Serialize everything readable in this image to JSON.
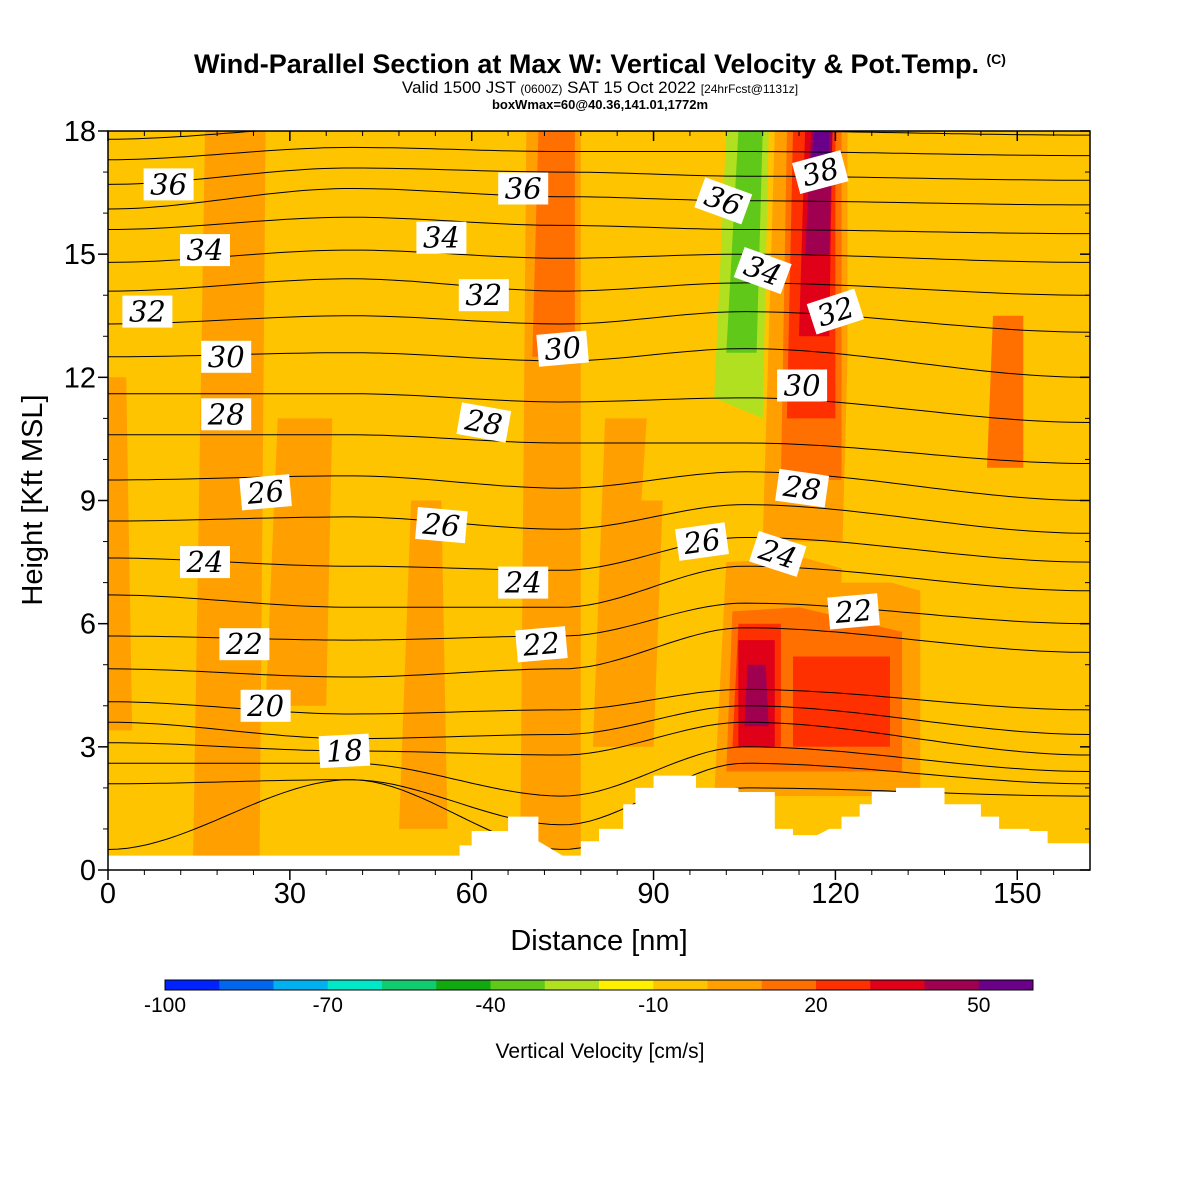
{
  "title": "Wind-Parallel Section at Max W: Vertical Velocity & Pot.Temp.",
  "copyright": "(C)",
  "subtitle": {
    "valid": "Valid 1500 JST",
    "utc": "(0600Z)",
    "date": "SAT 15 Oct 2022",
    "fcst": "[24hrFcst@1131z]"
  },
  "box_info": "boxWmax=60@40.36,141.01,1772m",
  "chart_data": {
    "type": "heatmap",
    "xlabel": "Distance [nm]",
    "ylabel": "Height [Kft MSL]",
    "xlim": [
      0,
      162
    ],
    "ylim": [
      0,
      18
    ],
    "x_ticks": [
      0,
      30,
      60,
      90,
      120,
      150
    ],
    "y_ticks": [
      0,
      3,
      6,
      9,
      12,
      15,
      18
    ],
    "background_color": "#ffc400",
    "colorbar": {
      "label": "Vertical Velocity [cm/s]",
      "min": -100,
      "max": 60,
      "step": 10,
      "tick_labels": [
        -100,
        -70,
        -40,
        -10,
        20,
        50
      ],
      "colors": [
        "#0022ff",
        "#0066ee",
        "#00b0f0",
        "#00e8c8",
        "#10cc70",
        "#10aa10",
        "#60c818",
        "#b0e020",
        "#fff000",
        "#ffc400",
        "#ffa000",
        "#ff7000",
        "#ff3000",
        "#e00018",
        "#a00050",
        "#6a008a"
      ]
    },
    "terrain_kft": [
      [
        0,
        0.35
      ],
      [
        58,
        0.35
      ],
      [
        58,
        0.6
      ],
      [
        60,
        0.6
      ],
      [
        60,
        0.95
      ],
      [
        66,
        0.95
      ],
      [
        66,
        1.3
      ],
      [
        71,
        1.3
      ],
      [
        71,
        0.7
      ],
      [
        75,
        0.35
      ],
      [
        78,
        0.35
      ],
      [
        78,
        0.7
      ],
      [
        81,
        0.7
      ],
      [
        81,
        1.0
      ],
      [
        85,
        1.0
      ],
      [
        85,
        1.6
      ],
      [
        87,
        1.6
      ],
      [
        87,
        2.0
      ],
      [
        90,
        2.0
      ],
      [
        90,
        2.3
      ],
      [
        97,
        2.3
      ],
      [
        97,
        2.0
      ],
      [
        100,
        2.0
      ],
      [
        104,
        2.0
      ],
      [
        104,
        1.9
      ],
      [
        110,
        1.9
      ],
      [
        110,
        1.0
      ],
      [
        113,
        1.0
      ],
      [
        113,
        0.85
      ],
      [
        117,
        0.85
      ],
      [
        119,
        1.0
      ],
      [
        121,
        1.0
      ],
      [
        121,
        1.3
      ],
      [
        124,
        1.3
      ],
      [
        124,
        1.6
      ],
      [
        126,
        1.6
      ],
      [
        126,
        1.9
      ],
      [
        130,
        1.9
      ],
      [
        130,
        2.0
      ],
      [
        138,
        2.0
      ],
      [
        138,
        1.6
      ],
      [
        144,
        1.6
      ],
      [
        144,
        1.3
      ],
      [
        147,
        1.3
      ],
      [
        147,
        1.0
      ],
      [
        152,
        1.0
      ],
      [
        152,
        0.95
      ],
      [
        155,
        0.95
      ],
      [
        155,
        0.65
      ],
      [
        162,
        0.65
      ]
    ],
    "w_regions": [
      {
        "w": 5,
        "points": [
          [
            14,
            0
          ],
          [
            25,
            0
          ],
          [
            26,
            18
          ],
          [
            16,
            18
          ]
        ]
      },
      {
        "w": 5,
        "points": [
          [
            0,
            3.4
          ],
          [
            4,
            3.4
          ],
          [
            3,
            12
          ],
          [
            0,
            12
          ]
        ]
      },
      {
        "w": 5,
        "points": [
          [
            26,
            4
          ],
          [
            36,
            4
          ],
          [
            37,
            11
          ],
          [
            28,
            11
          ]
        ]
      },
      {
        "w": 5,
        "points": [
          [
            48,
            1
          ],
          [
            56,
            1
          ],
          [
            55,
            9
          ],
          [
            50,
            9
          ]
        ]
      },
      {
        "w": -5,
        "points": [
          [
            38,
            7
          ],
          [
            46,
            7
          ],
          [
            47,
            18
          ],
          [
            40,
            18
          ]
        ]
      },
      {
        "w": -5,
        "points": [
          [
            60,
            6
          ],
          [
            66,
            6
          ],
          [
            67,
            18
          ],
          [
            62,
            18
          ]
        ]
      },
      {
        "w": 5,
        "points": [
          [
            68,
            0.5
          ],
          [
            78,
            0.5
          ],
          [
            78,
            18
          ],
          [
            69,
            18
          ]
        ]
      },
      {
        "w": 15,
        "points": [
          [
            70,
            12.5
          ],
          [
            77,
            12.5
          ],
          [
            77,
            18
          ],
          [
            71,
            18
          ]
        ]
      },
      {
        "w": 5,
        "points": [
          [
            80,
            3
          ],
          [
            90,
            3
          ],
          [
            92,
            11
          ],
          [
            82,
            11
          ]
        ]
      },
      {
        "w": -5,
        "points": [
          [
            88,
            9
          ],
          [
            98,
            9
          ],
          [
            102,
            18
          ],
          [
            92,
            18
          ]
        ]
      },
      {
        "w": -10,
        "points": [
          [
            96,
            12
          ],
          [
            104,
            12
          ],
          [
            106,
            18
          ],
          [
            98,
            18
          ]
        ]
      },
      {
        "w": -25,
        "points": [
          [
            100,
            11.5
          ],
          [
            108,
            11
          ],
          [
            109,
            18
          ],
          [
            102,
            18
          ]
        ]
      },
      {
        "w": -35,
        "points": [
          [
            102,
            12.6
          ],
          [
            107,
            12.6
          ],
          [
            108,
            18
          ],
          [
            104,
            18
          ]
        ]
      },
      {
        "w": 5,
        "points": [
          [
            100,
            1.8
          ],
          [
            134,
            1.8
          ],
          [
            134,
            6.8
          ],
          [
            115,
            7.6
          ],
          [
            102,
            7.5
          ]
        ]
      },
      {
        "w": 15,
        "points": [
          [
            102,
            2.4
          ],
          [
            131,
            2.4
          ],
          [
            131,
            5.8
          ],
          [
            114,
            6.4
          ],
          [
            103,
            6.3
          ]
        ]
      },
      {
        "w": 25,
        "points": [
          [
            103,
            3
          ],
          [
            111,
            3
          ],
          [
            111,
            6.0
          ],
          [
            104,
            6.0
          ]
        ]
      },
      {
        "w": 25,
        "points": [
          [
            113,
            3
          ],
          [
            129,
            3
          ],
          [
            129,
            5.2
          ],
          [
            113,
            5.2
          ]
        ]
      },
      {
        "w": 35,
        "points": [
          [
            104,
            3
          ],
          [
            110,
            3
          ],
          [
            110,
            5.6
          ],
          [
            104,
            5.6
          ]
        ]
      },
      {
        "w": 45,
        "points": [
          [
            105,
            3.5
          ],
          [
            109,
            3.5
          ],
          [
            108.5,
            5.0
          ],
          [
            105.5,
            5.0
          ]
        ]
      },
      {
        "w": 5,
        "points": [
          [
            108,
            8
          ],
          [
            122,
            8
          ],
          [
            122,
            18
          ],
          [
            110,
            18
          ]
        ]
      },
      {
        "w": 15,
        "points": [
          [
            111,
            9.5
          ],
          [
            121,
            9.5
          ],
          [
            121,
            18
          ],
          [
            112,
            18
          ]
        ]
      },
      {
        "w": 25,
        "points": [
          [
            112,
            11
          ],
          [
            120,
            11
          ],
          [
            120,
            18
          ],
          [
            113,
            18
          ]
        ]
      },
      {
        "w": 35,
        "points": [
          [
            114,
            13
          ],
          [
            119,
            13
          ],
          [
            119.5,
            18
          ],
          [
            115,
            18
          ]
        ]
      },
      {
        "w": 45,
        "points": [
          [
            115,
            15
          ],
          [
            119,
            15
          ],
          [
            119.5,
            18
          ],
          [
            116,
            18
          ]
        ]
      },
      {
        "w": 55,
        "points": [
          [
            116,
            17.2
          ],
          [
            119,
            17.2
          ],
          [
            119,
            18
          ],
          [
            116.5,
            18
          ]
        ]
      },
      {
        "w": -5,
        "points": [
          [
            121,
            7
          ],
          [
            132,
            7
          ],
          [
            133,
            18
          ],
          [
            123,
            18
          ]
        ]
      },
      {
        "w": -5,
        "points": [
          [
            148,
            4
          ],
          [
            158,
            4
          ],
          [
            160,
            16
          ],
          [
            150,
            16
          ]
        ]
      },
      {
        "w": 15,
        "points": [
          [
            145,
            9.8
          ],
          [
            151,
            9.8
          ],
          [
            151,
            13.5
          ],
          [
            146,
            13.5
          ]
        ]
      }
    ],
    "theta_levels": [
      {
        "value": 16,
        "h": [
          0.5,
          2.2,
          0.5,
          2.0,
          1.8
        ]
      },
      {
        "value": 17,
        "h": [
          2.1,
          2.2,
          1.1,
          2.6,
          2.1
        ]
      },
      {
        "value": 18,
        "h": [
          2.6,
          2.6,
          1.8,
          3.0,
          2.4
        ]
      },
      {
        "value": 19,
        "h": [
          3.1,
          2.9,
          2.8,
          3.6,
          2.8
        ]
      },
      {
        "value": 20,
        "h": [
          3.6,
          3.2,
          3.3,
          4.0,
          3.3
        ]
      },
      {
        "value": 21,
        "h": [
          4.1,
          3.8,
          3.9,
          4.4,
          3.9
        ]
      },
      {
        "value": 22,
        "h": [
          4.9,
          4.7,
          4.9,
          5.9,
          5.3
        ]
      },
      {
        "value": 23,
        "h": [
          5.7,
          5.6,
          5.7,
          6.5,
          6.0
        ]
      },
      {
        "value": 24,
        "h": [
          6.7,
          6.4,
          6.4,
          7.4,
          6.8
        ]
      },
      {
        "value": 25,
        "h": [
          7.6,
          7.4,
          7.3,
          8.1,
          7.5
        ]
      },
      {
        "value": 26,
        "h": [
          8.5,
          8.6,
          8.3,
          8.9,
          8.2
        ]
      },
      {
        "value": 27,
        "h": [
          9.5,
          9.6,
          9.3,
          9.7,
          9.0
        ]
      },
      {
        "value": 28,
        "h": [
          10.6,
          10.6,
          10.4,
          10.4,
          9.9
        ]
      },
      {
        "value": 29,
        "h": [
          11.6,
          11.6,
          11.4,
          11.5,
          10.9
        ]
      },
      {
        "value": 30,
        "h": [
          12.5,
          12.6,
          12.4,
          12.7,
          12.0
        ]
      },
      {
        "value": 31,
        "h": [
          13.3,
          13.5,
          13.3,
          13.6,
          13.1
        ]
      },
      {
        "value": 32,
        "h": [
          14.1,
          14.4,
          14.1,
          14.3,
          14.0
        ]
      },
      {
        "value": 33,
        "h": [
          14.8,
          15.1,
          14.9,
          15.0,
          14.8
        ]
      },
      {
        "value": 34,
        "h": [
          15.6,
          15.9,
          15.7,
          15.6,
          15.5
        ]
      },
      {
        "value": 35,
        "h": [
          16.1,
          16.6,
          16.4,
          16.3,
          16.2
        ]
      },
      {
        "value": 36,
        "h": [
          16.7,
          17.1,
          17.0,
          16.9,
          16.8
        ]
      },
      {
        "value": 37,
        "h": [
          17.3,
          17.6,
          17.5,
          17.5,
          17.4
        ]
      },
      {
        "value": 38,
        "h": [
          17.8,
          18.1,
          18.0,
          18.0,
          17.9
        ]
      }
    ],
    "theta_x_nodes": [
      0,
      40,
      75,
      105,
      162
    ],
    "theta_labels": [
      {
        "text": "36",
        "x": 10,
        "y": 16.7,
        "rot": 0
      },
      {
        "text": "34",
        "x": 16,
        "y": 15.1,
        "rot": 0
      },
      {
        "text": "32",
        "x": 6.5,
        "y": 13.6,
        "rot": 0
      },
      {
        "text": "30",
        "x": 19.5,
        "y": 12.5,
        "rot": 0
      },
      {
        "text": "28",
        "x": 19.5,
        "y": 11.1,
        "rot": 0
      },
      {
        "text": "26",
        "x": 26,
        "y": 9.2,
        "rot": -5
      },
      {
        "text": "24",
        "x": 16,
        "y": 7.5,
        "rot": 0
      },
      {
        "text": "22",
        "x": 22.5,
        "y": 5.5,
        "rot": 0
      },
      {
        "text": "20",
        "x": 26,
        "y": 4.0,
        "rot": 0
      },
      {
        "text": "18",
        "x": 39,
        "y": 2.9,
        "rot": -3
      },
      {
        "text": "36",
        "x": 68.5,
        "y": 16.6,
        "rot": 0
      },
      {
        "text": "34",
        "x": 55,
        "y": 15.4,
        "rot": 0
      },
      {
        "text": "32",
        "x": 62,
        "y": 14.0,
        "rot": 0
      },
      {
        "text": "30",
        "x": 75,
        "y": 12.7,
        "rot": -5
      },
      {
        "text": "28",
        "x": 62,
        "y": 10.9,
        "rot": 10
      },
      {
        "text": "26",
        "x": 55,
        "y": 8.4,
        "rot": 5
      },
      {
        "text": "24",
        "x": 68.5,
        "y": 7.0,
        "rot": 0
      },
      {
        "text": "22",
        "x": 71.5,
        "y": 5.5,
        "rot": -5
      },
      {
        "text": "26",
        "x": 98,
        "y": 8.0,
        "rot": -8
      },
      {
        "text": "24",
        "x": 110.5,
        "y": 7.7,
        "rot": 18
      },
      {
        "text": "22",
        "x": 123,
        "y": 6.3,
        "rot": -5
      },
      {
        "text": "36",
        "x": 101.5,
        "y": 16.3,
        "rot": 20
      },
      {
        "text": "34",
        "x": 108,
        "y": 14.6,
        "rot": 20
      },
      {
        "text": "32",
        "x": 120,
        "y": 13.6,
        "rot": -18
      },
      {
        "text": "30",
        "x": 114.5,
        "y": 11.8,
        "rot": 0
      },
      {
        "text": "28",
        "x": 114.5,
        "y": 9.3,
        "rot": 8
      },
      {
        "text": "38",
        "x": 117.5,
        "y": 17.0,
        "rot": -15
      }
    ]
  }
}
